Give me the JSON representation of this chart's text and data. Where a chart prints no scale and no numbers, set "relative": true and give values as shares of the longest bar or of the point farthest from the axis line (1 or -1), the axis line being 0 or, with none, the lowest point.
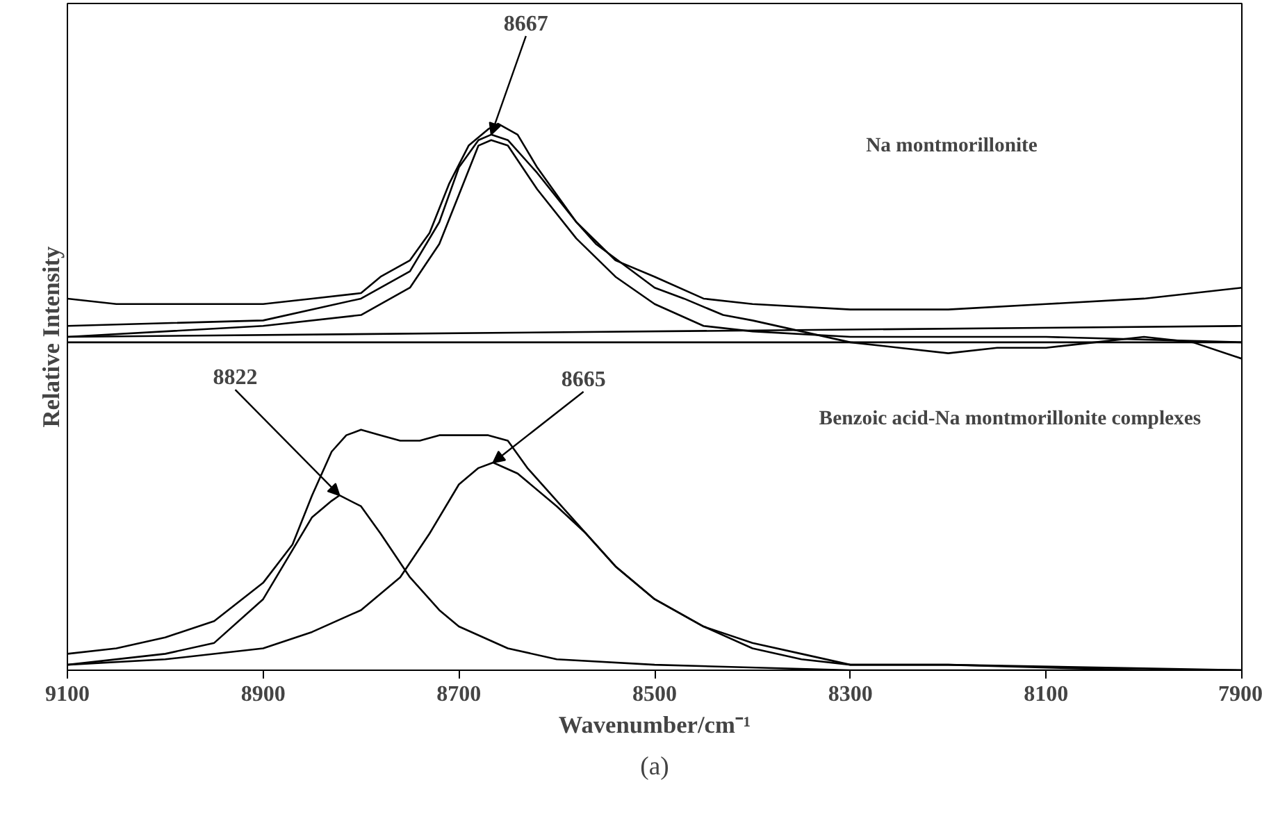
{
  "chart_data": {
    "type": "line",
    "relative": true,
    "xlabel": "Wavenumber/cm⁻¹",
    "ylabel": "Relative Intensity",
    "xlim": [
      9100,
      7900
    ],
    "xticks": [
      9100,
      8900,
      8700,
      8500,
      8300,
      8100,
      7900
    ],
    "grid": false,
    "tick_labels": "x",
    "marker": "none",
    "line_style": "solid",
    "series": [
      {
        "color": "#000000",
        "x": [
          9100,
          9050,
          9000,
          8950,
          8900,
          8850,
          8800,
          8780,
          8750,
          8730,
          8710,
          8690,
          8670,
          8660,
          8640,
          8620,
          8600,
          8580,
          8560,
          8530,
          8500,
          8470,
          8430,
          8400,
          8350,
          8300,
          8250,
          8200,
          8150,
          8100,
          8050,
          8000,
          7950,
          7900
        ],
        "values": [
          0.68,
          0.67,
          0.67,
          0.67,
          0.67,
          0.68,
          0.69,
          0.72,
          0.75,
          0.8,
          0.89,
          0.96,
          0.99,
          1.0,
          0.98,
          0.92,
          0.87,
          0.82,
          0.78,
          0.74,
          0.7,
          0.68,
          0.65,
          0.64,
          0.62,
          0.6,
          0.59,
          0.58,
          0.59,
          0.59,
          0.6,
          0.61,
          0.6,
          0.57
        ]
      },
      {
        "color": "#000000",
        "x": [
          9100,
          8900,
          8800,
          8750,
          8720,
          8700,
          8680,
          8667,
          8650,
          8620,
          8580,
          8540,
          8500,
          8450,
          8400,
          8300,
          8200,
          8100,
          8000,
          7900
        ],
        "values": [
          0.63,
          0.64,
          0.68,
          0.73,
          0.82,
          0.92,
          0.97,
          0.98,
          0.97,
          0.91,
          0.82,
          0.75,
          0.72,
          0.68,
          0.67,
          0.66,
          0.66,
          0.67,
          0.68,
          0.7
        ]
      },
      {
        "color": "#000000",
        "x": [
          9100,
          8900,
          8800,
          8750,
          8720,
          8700,
          8680,
          8667,
          8650,
          8620,
          8580,
          8540,
          8500,
          8450,
          8400,
          8300,
          8100,
          7900
        ],
        "values": [
          0.61,
          0.63,
          0.65,
          0.7,
          0.78,
          0.87,
          0.96,
          0.97,
          0.96,
          0.88,
          0.79,
          0.72,
          0.67,
          0.63,
          0.62,
          0.61,
          0.61,
          0.6
        ]
      },
      {
        "color": "#000000",
        "x": [
          9100,
          7900
        ],
        "values": [
          0.61,
          0.63
        ]
      },
      {
        "color": "#000000",
        "x": [
          9100,
          7900
        ],
        "values": [
          0.6,
          0.6
        ]
      },
      {
        "color": "#000000",
        "x": [
          9100,
          9050,
          9000,
          8950,
          8900,
          8870,
          8850,
          8830,
          8815,
          8800,
          8780,
          8760,
          8740,
          8720,
          8700,
          8670,
          8650,
          8630,
          8600,
          8570,
          8540,
          8500,
          8450,
          8400,
          8350,
          8300,
          8200,
          8000,
          7900
        ],
        "values": [
          0.03,
          0.04,
          0.06,
          0.09,
          0.16,
          0.23,
          0.32,
          0.4,
          0.43,
          0.44,
          0.43,
          0.42,
          0.42,
          0.43,
          0.43,
          0.43,
          0.42,
          0.37,
          0.31,
          0.25,
          0.19,
          0.13,
          0.08,
          0.05,
          0.03,
          0.01,
          0.01,
          0.0,
          0.0
        ]
      },
      {
        "color": "#000000",
        "x": [
          9100,
          9000,
          8950,
          8900,
          8870,
          8850,
          8830,
          8822,
          8800,
          8780,
          8750,
          8720,
          8700,
          8650,
          8600,
          8500,
          8300,
          7900
        ],
        "values": [
          0.01,
          0.03,
          0.05,
          0.13,
          0.22,
          0.28,
          0.31,
          0.32,
          0.3,
          0.25,
          0.17,
          0.11,
          0.08,
          0.04,
          0.02,
          0.01,
          0.0,
          0.0
        ]
      },
      {
        "color": "#000000",
        "x": [
          9100,
          9000,
          8900,
          8850,
          8800,
          8760,
          8730,
          8700,
          8680,
          8665,
          8640,
          8600,
          8570,
          8540,
          8500,
          8450,
          8400,
          8350,
          8300,
          8200,
          7900
        ],
        "values": [
          0.01,
          0.02,
          0.04,
          0.07,
          0.11,
          0.17,
          0.25,
          0.34,
          0.37,
          0.38,
          0.36,
          0.3,
          0.25,
          0.19,
          0.13,
          0.08,
          0.04,
          0.02,
          0.01,
          0.01,
          0.0
        ]
      }
    ],
    "annotations": [
      {
        "text": "8667",
        "x": 8667,
        "y": 0.98
      },
      {
        "text": "8822",
        "x": 8822,
        "y": 0.32
      },
      {
        "text": "8665",
        "x": 8665,
        "y": 0.38
      },
      "Na montmorillonite",
      "Benzoic acid-Na montmorillonite complexes",
      "(a)"
    ]
  }
}
